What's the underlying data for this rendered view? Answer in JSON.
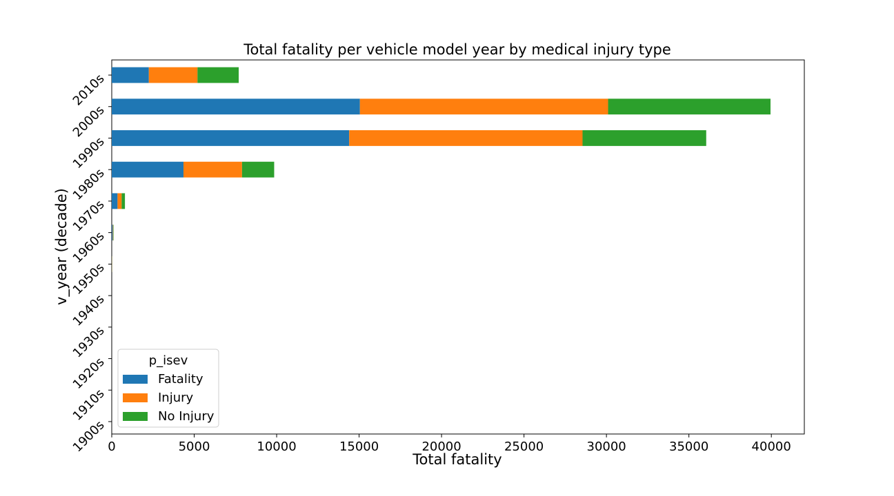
{
  "chart_data": {
    "type": "bar",
    "orientation": "horizontal",
    "stacked": true,
    "title": "Total fatality per vehicle model year by medical injury type",
    "xlabel": "Total fatality",
    "ylabel": "v_year (decade)",
    "xlim": [
      0,
      42000
    ],
    "xticks": [
      "0",
      "5000",
      "10000",
      "15000",
      "20000",
      "25000",
      "30000",
      "35000",
      "40000"
    ],
    "categories": [
      "1900s",
      "1910s",
      "1920s",
      "1930s",
      "1940s",
      "1950s",
      "1960s",
      "1970s",
      "1980s",
      "1990s",
      "2000s",
      "2010s"
    ],
    "series": [
      {
        "name": "Fatality",
        "color": "#1f77b4",
        "values": [
          0,
          0,
          0,
          0,
          0,
          10,
          60,
          350,
          4350,
          14400,
          15050,
          2250
        ]
      },
      {
        "name": "Injury",
        "color": "#ff7f0e",
        "values": [
          0,
          0,
          0,
          0,
          0,
          10,
          30,
          250,
          3550,
          14150,
          15050,
          2950
        ]
      },
      {
        "name": "No Injury",
        "color": "#2ca02c",
        "values": [
          0,
          0,
          0,
          0,
          0,
          5,
          20,
          200,
          1950,
          7500,
          9850,
          2500
        ]
      }
    ],
    "legend": {
      "title": "p_isev",
      "position": "lower-left"
    },
    "grid": false
  }
}
